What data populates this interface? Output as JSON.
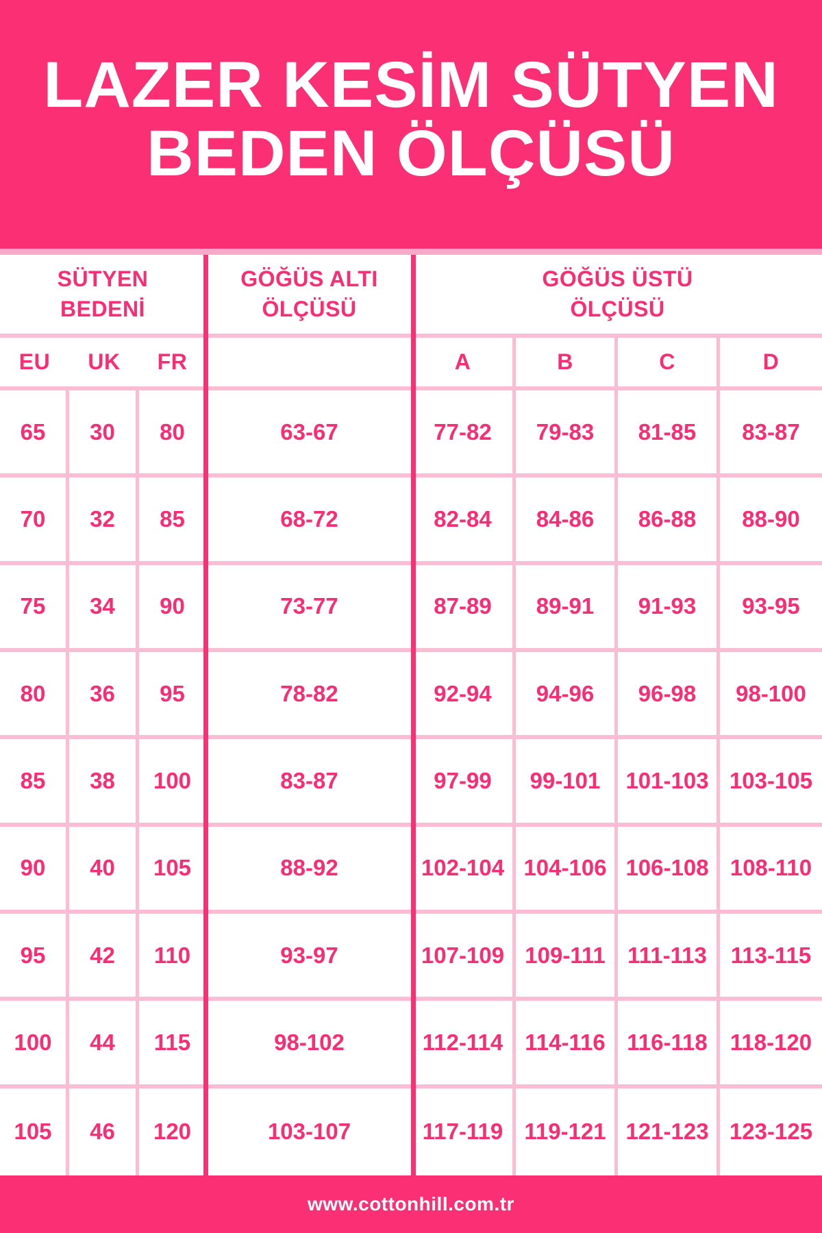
{
  "banner": {
    "title": "LAZER KESİM SÜTYEN\nBEDEN ÖLÇÜSÜ"
  },
  "table": {
    "group_headers": {
      "bra_size": "SÜTYEN\nBEDENİ",
      "underbust": "GÖĞÜS ALTI\nÖLÇÜSÜ",
      "overbust": "GÖĞÜS ÜSTÜ\nÖLÇÜSÜ"
    },
    "sub_headers": [
      "EU",
      "UK",
      "FR",
      "",
      "A",
      "B",
      "C",
      "D"
    ],
    "rows": [
      [
        "65",
        "30",
        "80",
        "63-67",
        "77-82",
        "79-83",
        "81-85",
        "83-87"
      ],
      [
        "70",
        "32",
        "85",
        "68-72",
        "82-84",
        "84-86",
        "86-88",
        "88-90"
      ],
      [
        "75",
        "34",
        "90",
        "73-77",
        "87-89",
        "89-91",
        "91-93",
        "93-95"
      ],
      [
        "80",
        "36",
        "95",
        "78-82",
        "92-94",
        "94-96",
        "96-98",
        "98-100"
      ],
      [
        "85",
        "38",
        "100",
        "83-87",
        "97-99",
        "99-101",
        "101-103",
        "103-105"
      ],
      [
        "90",
        "40",
        "105",
        "88-92",
        "102-104",
        "104-106",
        "106-108",
        "108-110"
      ],
      [
        "95",
        "42",
        "110",
        "93-97",
        "107-109",
        "109-111",
        "111-113",
        "113-115"
      ],
      [
        "100",
        "44",
        "115",
        "98-102",
        "112-114",
        "114-116",
        "116-118",
        "118-120"
      ],
      [
        "105",
        "46",
        "120",
        "103-107",
        "117-119",
        "119-121",
        "121-123",
        "123-125"
      ]
    ]
  },
  "footer": {
    "website": "www.cottonhill.com.tr"
  },
  "colors": {
    "primary_pink": "#fa2f74",
    "text_pink": "#f72e74",
    "light_pink_grid": "#fbbdd4",
    "banner_strip_pink": "#f8a9c9",
    "background": "#ffffff",
    "title_text": "#ffffff"
  }
}
